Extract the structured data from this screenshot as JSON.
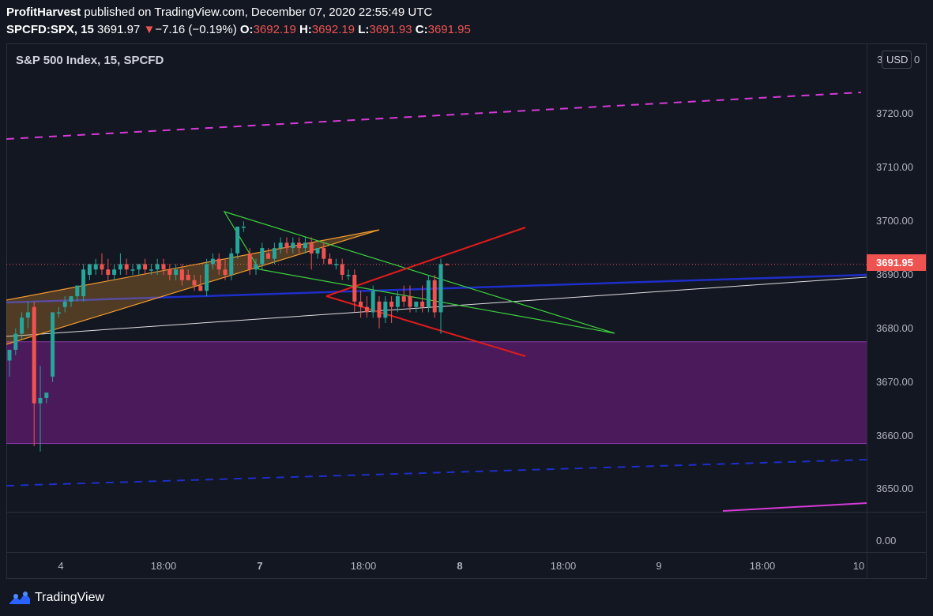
{
  "header": {
    "author": "ProfitHarvest",
    "published_text": "published on TradingView.com, December 07, 2020 22:55:49 UTC",
    "symbol": "SPCFD:SPX, 15",
    "last": "3691.97",
    "change_arrow": "▼",
    "change": "−7.16 (−0.19%)",
    "o_label": "O:",
    "o_value": "3692.19",
    "h_label": "H:",
    "h_value": "3692.19",
    "l_label": "L:",
    "l_value": "3691.93",
    "c_label": "C:",
    "c_value": "3691.95"
  },
  "chart_title": "S&P 500 Index, 15, SPCFD",
  "currency_button": "USD",
  "watermark": "TradingView",
  "colors": {
    "background": "#131722",
    "up": "#26a69a",
    "down": "#ef5350",
    "zone": "#4a1a5a",
    "magenta": "#d63ad6",
    "blue": "#1e2ec8",
    "green": "#3cd23c",
    "red": "#e31b1b",
    "orange": "#f29a2e"
  },
  "chart_data": {
    "type": "candlestick",
    "symbol": "SPCFD:SPX",
    "interval": "15",
    "y_axis": {
      "ticks": [
        "3720.00",
        "3710.00",
        "3700.00",
        "3690.00",
        "3680.00",
        "3670.00",
        "3660.00",
        "3650.00",
        "0.00"
      ],
      "partial_top_label": "3",
      "partial_top_label_right": "0",
      "current_price_label": "3691.95",
      "current_price": 3691.95
    },
    "x_axis": {
      "ticks": [
        "4",
        "18:00",
        "7",
        "18:00",
        "8",
        "18:00",
        "9",
        "18:00",
        "10"
      ]
    },
    "candles": [
      [
        3674,
        3676,
        3671,
        3676
      ],
      [
        3676,
        3680,
        3675,
        3679
      ],
      [
        3679,
        3683,
        3678,
        3682
      ],
      [
        3682,
        3685,
        3680,
        3683
      ],
      [
        3684,
        3685,
        3658,
        3666
      ],
      [
        3666,
        3673,
        3657,
        3667
      ],
      [
        3667,
        3668,
        3666,
        3668
      ],
      [
        3671,
        3683,
        3670,
        3683
      ],
      [
        3683,
        3684,
        3682,
        3683
      ],
      [
        3684,
        3686,
        3683,
        3685
      ],
      [
        3685,
        3686,
        3684,
        3686
      ],
      [
        3686,
        3688,
        3685,
        3688
      ],
      [
        3686,
        3692,
        3685,
        3691
      ],
      [
        3690,
        3692,
        3689,
        3692
      ],
      [
        3691,
        3693,
        3690,
        3692
      ],
      [
        3692,
        3694,
        3690,
        3691
      ],
      [
        3691,
        3693,
        3689,
        3690
      ],
      [
        3690,
        3692,
        3689,
        3691
      ],
      [
        3691,
        3694,
        3690,
        3692
      ],
      [
        3692,
        3693,
        3690,
        3691
      ],
      [
        3691,
        3692,
        3690,
        3691
      ],
      [
        3691,
        3692,
        3690,
        3692
      ],
      [
        3692,
        3693,
        3690,
        3691
      ],
      [
        3691,
        3692,
        3690,
        3691
      ],
      [
        3691,
        3693,
        3690,
        3692
      ],
      [
        3692,
        3693,
        3690,
        3691
      ],
      [
        3691,
        3692,
        3689,
        3690
      ],
      [
        3690,
        3692,
        3689,
        3691
      ],
      [
        3691,
        3692,
        3688,
        3689
      ],
      [
        3690,
        3691,
        3689,
        3689
      ],
      [
        3689,
        3690,
        3687,
        3688
      ],
      [
        3688,
        3690,
        3687,
        3687
      ],
      [
        3687,
        3693,
        3686,
        3692
      ],
      [
        3692,
        3694,
        3691,
        3693
      ],
      [
        3693,
        3694,
        3690,
        3691
      ],
      [
        3691,
        3693,
        3689,
        3690
      ],
      [
        3690,
        3695,
        3689,
        3694
      ],
      [
        3694,
        3699,
        3693,
        3699
      ],
      [
        3699,
        3700,
        3698,
        3699
      ],
      [
        3694,
        3695,
        3690,
        3691
      ],
      [
        3691,
        3693,
        3690,
        3692
      ],
      [
        3692,
        3696,
        3691,
        3695
      ],
      [
        3694,
        3695,
        3693,
        3693
      ],
      [
        3693,
        3696,
        3692,
        3695
      ],
      [
        3695,
        3697,
        3694,
        3696
      ],
      [
        3696,
        3697,
        3694,
        3695
      ],
      [
        3695,
        3697,
        3694,
        3696
      ],
      [
        3696,
        3697,
        3694,
        3695
      ],
      [
        3695,
        3697,
        3694,
        3696
      ],
      [
        3696,
        3697,
        3691,
        3694
      ],
      [
        3694,
        3695,
        3693,
        3695
      ],
      [
        3695,
        3696,
        3692,
        3693
      ],
      [
        3693,
        3694,
        3692,
        3692
      ],
      [
        3692,
        3693,
        3691,
        3692
      ],
      [
        3692,
        3693,
        3689,
        3690
      ],
      [
        3690,
        3691,
        3689,
        3690
      ],
      [
        3690,
        3691,
        3683,
        3685
      ],
      [
        3685,
        3687,
        3682,
        3684
      ],
      [
        3684,
        3686,
        3682,
        3683
      ],
      [
        3683,
        3688,
        3682,
        3687
      ],
      [
        3685,
        3686,
        3680,
        3682
      ],
      [
        3682,
        3686,
        3681,
        3685
      ],
      [
        3685,
        3686,
        3681,
        3684
      ],
      [
        3684,
        3687,
        3683,
        3686
      ],
      [
        3686,
        3688,
        3684,
        3685
      ],
      [
        3686,
        3688,
        3683,
        3684
      ],
      [
        3684,
        3685,
        3683,
        3685
      ],
      [
        3685,
        3688,
        3683,
        3684
      ],
      [
        3684,
        3690,
        3683,
        3689
      ],
      [
        3689,
        3690,
        3682,
        3683
      ],
      [
        3683,
        3693,
        3679,
        3692
      ],
      [
        3692,
        3692.19,
        3691.93,
        3691.95
      ]
    ],
    "zones": [
      {
        "type": "rectangle",
        "y_from": 3658.5,
        "y_to": 3677.5
      }
    ]
  }
}
